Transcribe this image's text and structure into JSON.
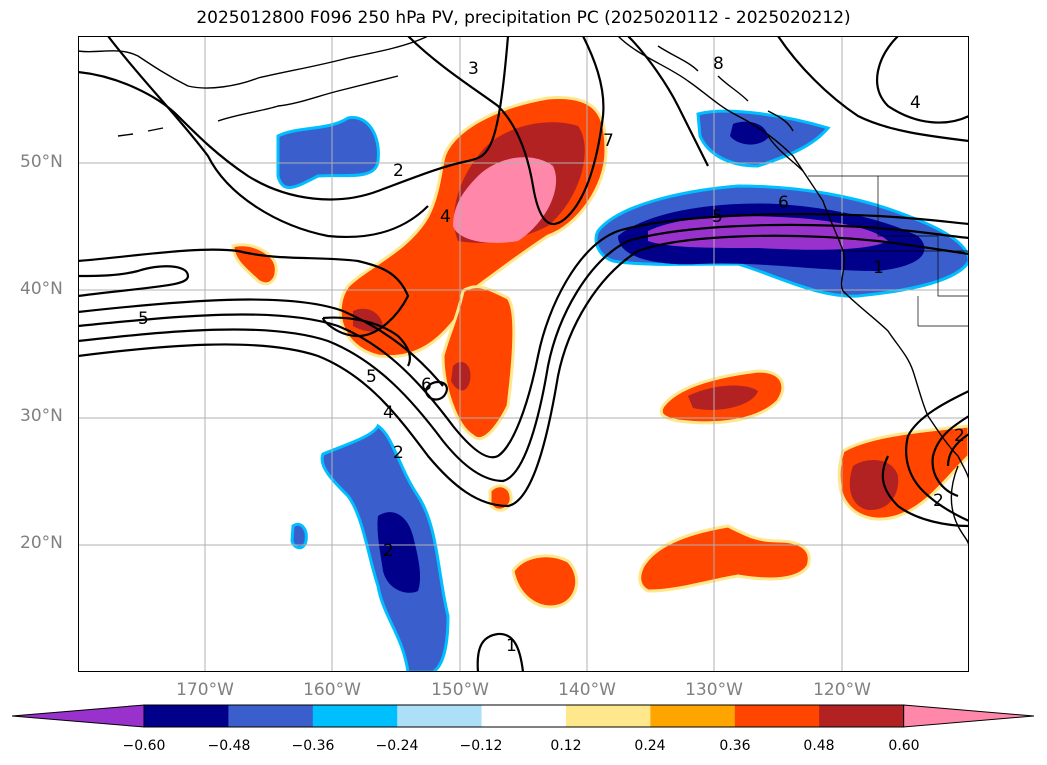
{
  "title": "2025012800 F096 250 hPa PV, precipitation PC (2025020112 - 2025020212)",
  "lat_labels": [
    "50°N",
    "40°N",
    "30°N",
    "20°N"
  ],
  "lon_labels": [
    "170°W",
    "160°W",
    "150°W",
    "140°W",
    "130°W",
    "120°W"
  ],
  "contour_labels": [
    "3",
    "8",
    "4",
    "2",
    "7",
    "4",
    "5",
    "6",
    "1",
    "5",
    "5",
    "6",
    "4",
    "2",
    "2",
    "2",
    "1",
    "2"
  ],
  "colorbar": {
    "ticks": [
      "−0.60",
      "−0.48",
      "−0.36",
      "−0.24",
      "−0.12",
      "0.12",
      "0.24",
      "0.36",
      "0.48",
      "0.60"
    ],
    "colors": [
      "#9932CC",
      "#00008B",
      "#3A5FCD",
      "#00BFFF",
      "#ADE0F8",
      "#FFFFFF",
      "#FFE78C",
      "#FFA500",
      "#FF4500",
      "#B22222",
      "#FF88AA"
    ]
  },
  "colors": {
    "coast": "#000000",
    "contour": "#000000",
    "grid": "#b0b0b0",
    "label": "#808080"
  }
}
